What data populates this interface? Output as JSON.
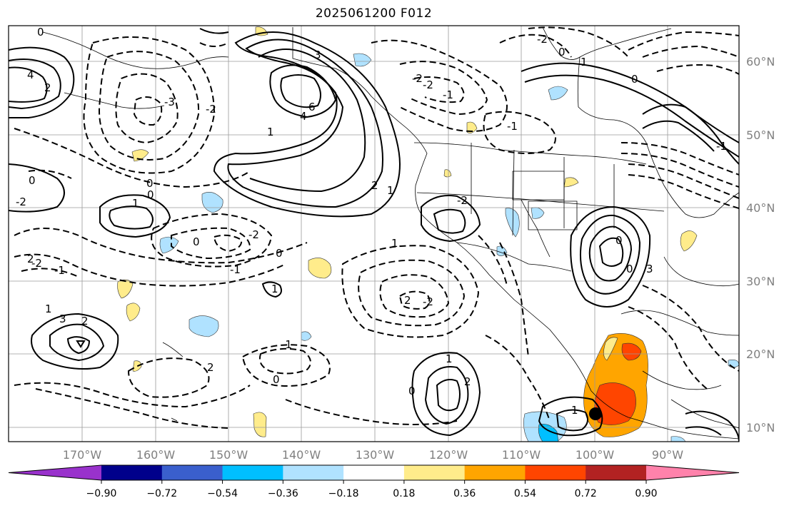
{
  "title": "2025061200 F012",
  "map": {
    "lat_labels": [
      "60°N",
      "50°N",
      "40°N",
      "30°N",
      "20°N",
      "10°N"
    ],
    "lon_labels": [
      "170°W",
      "160°W",
      "150°W",
      "140°W",
      "130°W",
      "120°W",
      "110°W",
      "100°W",
      "90°W"
    ],
    "contour_labels": [
      "0",
      "4",
      "2",
      "3",
      "6",
      "4",
      "-3",
      "1",
      "-2",
      "2",
      "1",
      "1",
      "0",
      "0",
      "1",
      "2",
      "3",
      "0",
      "-2",
      "-2",
      "-1",
      "-2",
      "-1",
      "-2",
      "0",
      "1",
      "0",
      "-1",
      "-2",
      "2",
      "0",
      "-2",
      "-1",
      "-1",
      "0",
      "1",
      "2",
      "-2",
      "-1",
      "0",
      "2",
      "1",
      "0",
      "2",
      "1",
      "3",
      "0",
      "0",
      "-2",
      "1"
    ]
  },
  "colorbar": {
    "tick_labels": [
      "−0.90",
      "−0.72",
      "−0.54",
      "−0.36",
      "−0.18",
      "0.18",
      "0.36",
      "0.54",
      "0.72",
      "0.90"
    ],
    "colors": [
      "#9932cc",
      "#00008b",
      "#3a5fcd",
      "#00bfff",
      "#b0e2ff",
      "#ffffff",
      "#ffec8b",
      "#ffa500",
      "#ff4500",
      "#b22222",
      "#ff82ab"
    ]
  }
}
